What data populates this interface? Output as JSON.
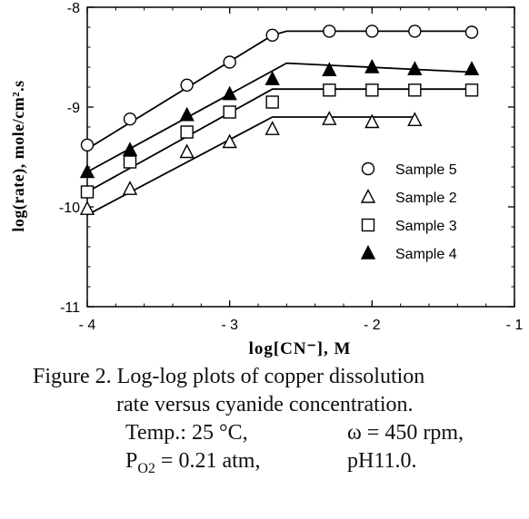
{
  "chart_data": {
    "type": "scatter",
    "xlabel": "log[CN⁻],  M",
    "ylabel": "log(rate),    mole/cm².s",
    "xlim": [
      -4.0,
      -1.0
    ],
    "ylim": [
      -11.0,
      -8.0
    ],
    "x_ticks": [
      -4,
      -3,
      -2,
      -1
    ],
    "x_tick_labels": [
      "- 4",
      "- 3",
      "- 2",
      "- 1"
    ],
    "y_ticks": [
      -11,
      -10,
      -9,
      -8
    ],
    "y_tick_labels": [
      "-11",
      "-10",
      "-9",
      "-8"
    ],
    "grid": false,
    "legend_position": "right",
    "series": [
      {
        "name": "Sample 5",
        "marker": "circle-open",
        "points": [
          [
            -4.0,
            -9.38
          ],
          [
            -3.7,
            -9.12
          ],
          [
            -3.3,
            -8.78
          ],
          [
            -3.0,
            -8.55
          ],
          [
            -2.7,
            -8.28
          ],
          [
            -2.3,
            -8.24
          ],
          [
            -2.0,
            -8.24
          ],
          [
            -1.7,
            -8.24
          ],
          [
            -1.3,
            -8.25
          ]
        ],
        "fit_line": [
          [
            -4.0,
            -9.42
          ],
          [
            -2.7,
            -8.28
          ],
          [
            -2.6,
            -8.24
          ],
          [
            -1.3,
            -8.24
          ]
        ]
      },
      {
        "name": "Sample 2",
        "marker": "triangle-open",
        "points": [
          [
            -4.0,
            -10.02
          ],
          [
            -3.7,
            -9.82
          ],
          [
            -3.3,
            -9.45
          ],
          [
            -3.0,
            -9.35
          ],
          [
            -2.7,
            -9.22
          ],
          [
            -2.3,
            -9.12
          ],
          [
            -2.0,
            -9.15
          ],
          [
            -1.7,
            -9.13
          ]
        ],
        "fit_line": [
          [
            -4.0,
            -10.08
          ],
          [
            -2.7,
            -9.1
          ],
          [
            -1.7,
            -9.1
          ]
        ]
      },
      {
        "name": "Sample 3",
        "marker": "square-open",
        "points": [
          [
            -4.0,
            -9.85
          ],
          [
            -3.7,
            -9.55
          ],
          [
            -3.3,
            -9.25
          ],
          [
            -3.0,
            -9.05
          ],
          [
            -2.7,
            -8.95
          ],
          [
            -2.3,
            -8.83
          ],
          [
            -2.0,
            -8.83
          ],
          [
            -1.7,
            -8.83
          ],
          [
            -1.3,
            -8.83
          ]
        ],
        "fit_line": [
          [
            -4.0,
            -9.85
          ],
          [
            -2.7,
            -8.82
          ],
          [
            -1.3,
            -8.82
          ]
        ]
      },
      {
        "name": "Sample 4",
        "marker": "triangle-filled",
        "points": [
          [
            -4.0,
            -9.65
          ],
          [
            -3.7,
            -9.43
          ],
          [
            -3.3,
            -9.08
          ],
          [
            -3.0,
            -8.87
          ],
          [
            -2.7,
            -8.72
          ],
          [
            -2.3,
            -8.63
          ],
          [
            -2.0,
            -8.6
          ],
          [
            -1.7,
            -8.62
          ],
          [
            -1.3,
            -8.62
          ]
        ],
        "fit_line": [
          [
            -4.0,
            -9.65
          ],
          [
            -2.6,
            -8.56
          ],
          [
            -1.3,
            -8.65
          ]
        ]
      }
    ]
  },
  "caption": {
    "line1": "Figure 2. Log-log plots of copper dissolution",
    "line2": "rate versus cyanide concentration.",
    "line3a": "Temp.: 25 °C,",
    "line3b": "ω = 450 rpm,",
    "line4a": "P",
    "line4a_sub": "O2",
    "line4a_rest": " = 0.21 atm,",
    "line4b": "pH11.0."
  }
}
